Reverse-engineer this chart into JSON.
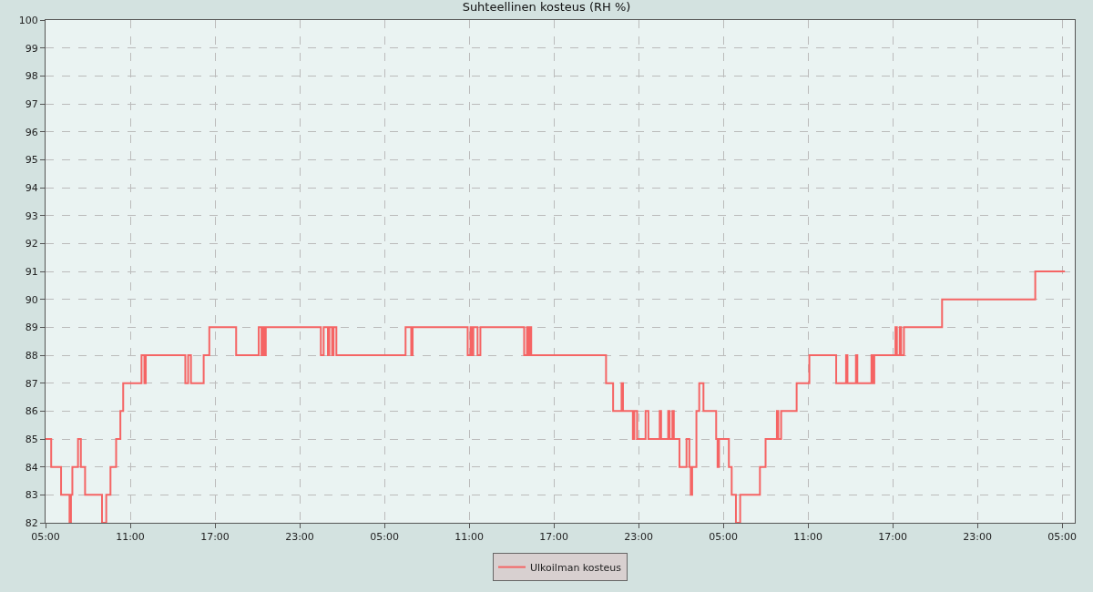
{
  "chart_data": {
    "type": "step",
    "title": "Suhteellinen kosteus (RH %)",
    "x": [
      "--01-01T05:00",
      "--01-01T05:18",
      "--01-01T05:24",
      "--01-01T06:06",
      "--01-01T06:42",
      "--01-01T06:48",
      "--01-01T06:54",
      "--01-01T07:18",
      "--01-01T07:30",
      "--01-01T07:48",
      "--01-01T09:00",
      "--01-01T09:18",
      "--01-01T09:36",
      "--01-01T10:00",
      "--01-01T10:18",
      "--01-01T10:30",
      "--01-01T11:48",
      "--01-01T12:00",
      "--01-01T12:06",
      "--01-01T14:54",
      "--01-01T15:06",
      "--01-01T15:18",
      "--01-01T16:12",
      "--01-01T16:36",
      "--01-01T18:30",
      "--01-01T20:06",
      "--01-01T20:18",
      "--01-01T20:24",
      "--01-01T20:30",
      "--01-01T20:36",
      "--01-02T00:30",
      "--01-02T00:42",
      "--01-02T01:00",
      "--01-02T01:06",
      "--01-02T01:18",
      "--01-02T01:24",
      "--01-02T01:36",
      "--01-02T06:30",
      "--01-02T06:54",
      "--01-02T07:00",
      "--01-02T10:54",
      "--01-02T11:06",
      "--01-02T11:12",
      "--01-02T11:18",
      "--01-02T11:36",
      "--01-02T11:48",
      "--01-02T14:54",
      "--01-02T15:06",
      "--01-02T15:12",
      "--01-02T15:18",
      "--01-02T15:24",
      "--01-02T20:42",
      "--01-02T21:12",
      "--01-02T21:48",
      "--01-02T21:54",
      "--01-02T22:36",
      "--01-02T22:42",
      "--01-02T22:54",
      "--01-02T23:30",
      "--01-02T23:42",
      "--01-03T00:30",
      "--01-03T00:36",
      "--01-03T01:06",
      "--01-03T01:12",
      "--01-03T01:24",
      "--01-03T01:30",
      "--01-03T01:54",
      "--01-03T02:24",
      "--01-03T02:36",
      "--01-03T02:42",
      "--01-03T02:48",
      "--01-03T03:06",
      "--01-03T03:18",
      "--01-03T03:36",
      "--01-03T04:30",
      "--01-03T04:36",
      "--01-03T04:42",
      "--01-03T05:24",
      "--01-03T05:36",
      "--01-03T05:54",
      "--01-03T06:12",
      "--01-03T07:36",
      "--01-03T08:00",
      "--01-03T08:48",
      "--01-03T08:54",
      "--01-03T09:06",
      "--01-03T10:12",
      "--01-03T11:06",
      "--01-03T13:00",
      "--01-03T13:42",
      "--01-03T13:48",
      "--01-03T14:24",
      "--01-03T14:30",
      "--01-03T15:30",
      "--01-03T15:36",
      "--01-03T15:42",
      "--01-03T17:12",
      "--01-03T17:18",
      "--01-03T17:30",
      "--01-03T17:36",
      "--01-03T17:48",
      "--01-03T20:30",
      "--01-04T03:06",
      "--01-04T05:12"
    ],
    "series": [
      {
        "name": "Ulkoilman kosteus",
        "color": "#f56464",
        "values": [
          85,
          85,
          84,
          83,
          82,
          83,
          84,
          85,
          84,
          83,
          82,
          83,
          84,
          85,
          86,
          87,
          88,
          87,
          88,
          87,
          88,
          87,
          88,
          89,
          88,
          89,
          88,
          89,
          88,
          89,
          88,
          89,
          88,
          89,
          88,
          89,
          88,
          89,
          88,
          89,
          88,
          89,
          88,
          89,
          88,
          89,
          88,
          89,
          88,
          89,
          88,
          87,
          86,
          87,
          86,
          85,
          86,
          85,
          86,
          85,
          86,
          85,
          86,
          85,
          86,
          85,
          84,
          85,
          84,
          83,
          84,
          86,
          87,
          86,
          85,
          84,
          85,
          84,
          83,
          82,
          83,
          84,
          85,
          86,
          85,
          86,
          87,
          88,
          87,
          88,
          87,
          88,
          87,
          88,
          87,
          88,
          89,
          88,
          89,
          88,
          89,
          90,
          91,
          91
        ]
      }
    ],
    "xlim": [
      "--01-01T05:00",
      "--01-04T05:54"
    ],
    "xticks": [
      {
        "value": "--01-01T05:00",
        "label": "05:00"
      },
      {
        "value": "--01-01T11:00",
        "label": "11:00"
      },
      {
        "value": "--01-01T17:00",
        "label": "17:00"
      },
      {
        "value": "--01-01T23:00",
        "label": "23:00"
      },
      {
        "value": "--01-02T05:00",
        "label": "05:00"
      },
      {
        "value": "--01-02T11:00",
        "label": "11:00"
      },
      {
        "value": "--01-02T17:00",
        "label": "17:00"
      },
      {
        "value": "--01-02T23:00",
        "label": "23:00"
      },
      {
        "value": "--01-03T05:00",
        "label": "05:00"
      },
      {
        "value": "--01-03T11:00",
        "label": "11:00"
      },
      {
        "value": "--01-03T17:00",
        "label": "17:00"
      },
      {
        "value": "--01-03T23:00",
        "label": "23:00"
      },
      {
        "value": "--01-04T05:00",
        "label": "05:00"
      }
    ],
    "ylim": [
      82,
      100
    ],
    "yticks": [
      82,
      83,
      84,
      85,
      86,
      87,
      88,
      89,
      90,
      91,
      92,
      93,
      94,
      95,
      96,
      97,
      98,
      99,
      100
    ],
    "grid": true,
    "legend": "bottom",
    "line_style": "solid",
    "marker": "none"
  }
}
